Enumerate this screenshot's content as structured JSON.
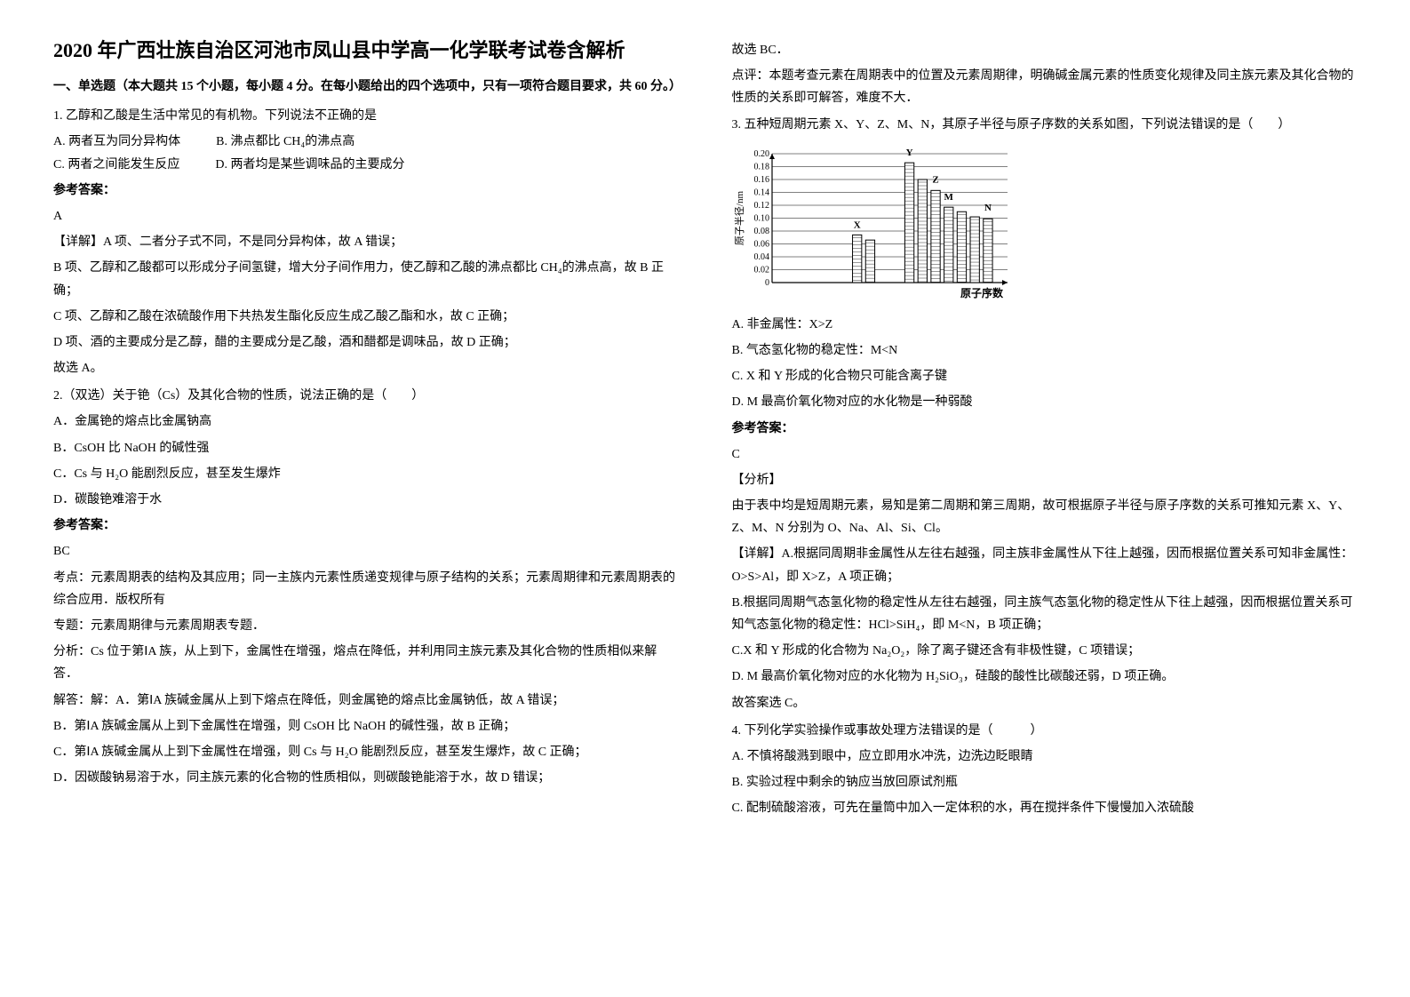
{
  "left": {
    "title": "2020 年广西壮族自治区河池市凤山县中学高一化学联考试卷含解析",
    "section1": "一、单选题（本大题共 15 个小题，每小题 4 分。在每小题给出的四个选项中，只有一项符合题目要求，共 60 分。）",
    "q1": {
      "stem": "1. 乙醇和乙酸是生活中常见的有机物。下列说法不正确的是",
      "A": "A. 两者互为同分异构体",
      "B": "B. 沸点都比 CH₄的沸点高",
      "C": "C. 两者之间能发生反应",
      "D": "D. 两者均是某些调味品的主要成分",
      "ans_label": "参考答案：",
      "ans": "A",
      "exp1": "【详解】A 项、二者分子式不同，不是同分异构体，故 A 错误；",
      "exp2": "B 项、乙醇和乙酸都可以形成分子间氢键，增大分子间作用力，使乙醇和乙酸的沸点都比 CH₄的沸点高，故 B 正确；",
      "exp3": "C 项、乙醇和乙酸在浓硫酸作用下共热发生酯化反应生成乙酸乙酯和水，故 C 正确；",
      "exp4": "D 项、酒的主要成分是乙醇，醋的主要成分是乙酸，酒和醋都是调味品，故 D 正确；",
      "exp5": "故选 A。"
    },
    "q2": {
      "stem": "2.（双选）关于铯（Cs）及其化合物的性质，说法正确的是（　　）",
      "A": "A．金属铯的熔点比金属钠高",
      "B": "B．CsOH 比 NaOH 的碱性强",
      "C": "C．Cs 与 H₂O 能剧烈反应，甚至发生爆炸",
      "D": "D．碳酸铯难溶于水",
      "ans_label": "参考答案：",
      "ans": "BC",
      "exp1": "考点：元素周期表的结构及其应用；同一主族内元素性质递变规律与原子结构的关系；元素周期律和元素周期表的综合应用．版权所有",
      "exp2": "专题：元素周期律与元素周期表专题．",
      "exp3": "分析：Cs 位于第ⅠA 族，从上到下，金属性在增强，熔点在降低，并利用同主族元素及其化合物的性质相似来解答．",
      "exp4": "解答：解：A．第ⅠA 族碱金属从上到下熔点在降低，则金属铯的熔点比金属钠低，故 A 错误；",
      "exp5": "B．第ⅠA 族碱金属从上到下金属性在增强，则 CsOH 比 NaOH 的碱性强，故 B 正确；",
      "exp6": "C．第ⅠA 族碱金属从上到下金属性在增强，则 Cs 与 H₂O 能剧烈反应，甚至发生爆炸，故 C 正确；",
      "exp7": "D．因碳酸钠易溶于水，同主族元素的化合物的性质相似，则碳酸铯能溶于水，故 D 错误；"
    }
  },
  "right": {
    "q2_tail1": "故选 BC．",
    "q2_tail2": "点评：本题考查元素在周期表中的位置及元素周期律，明确碱金属元素的性质变化规律及同主族元素及其化合物的性质的关系即可解答，难度不大．",
    "q3": {
      "stem": "3. 五种短周期元素 X、Y、Z、M、N，其原子半径与原子序数的关系如图，下列说法错误的是（　　）",
      "A": "A. 非金属性：X>Z",
      "B": "B. 气态氢化物的稳定性：M<N",
      "C": "C. X 和 Y 形成的化合物只可能含离子键",
      "D": "D. M 最高价氧化物对应的水化物是一种弱酸",
      "ans_label": "参考答案：",
      "ans": "C",
      "exp_h": "【分析】",
      "exp1": "由于表中均是短周期元素，易知是第二周期和第三周期，故可根据原子半径与原子序数的关系可推知元素 X、Y、Z、M、N 分别为 O、Na、Al、Si、Cl。",
      "exp2": "【详解】A.根据同周期非金属性从左往右越强，同主族非金属性从下往上越强，因而根据位置关系可知非金属性：O>S>Al，即 X>Z，A 项正确；",
      "exp3": "B.根据同周期气态氢化物的稳定性从左往右越强，同主族气态氢化物的稳定性从下往上越强，因而根据位置关系可知气态氢化物的稳定性：HCl>SiH₄，即 M<N，B 项正确；",
      "exp4": "C.X 和 Y 形成的化合物为 Na₂O₂，除了离子键还含有非极性键，C 项错误；",
      "exp5": "D. M 最高价氧化物对应的水化物为 H₂SiO₃，硅酸的酸性比碳酸还弱，D 项正确。",
      "exp6": "故答案选 C。"
    },
    "q4": {
      "stem": "4. 下列化学实验操作或事故处理方法错误的是（　　　）",
      "A": "A. 不慎将酸溅到眼中，应立即用水冲洗，边洗边眨眼睛",
      "B": "B. 实验过程中剩余的钠应当放回原试剂瓶",
      "C": "C. 配制硫酸溶液，可先在量筒中加入一定体积的水，再在搅拌条件下慢慢加入浓硫酸"
    },
    "chart": {
      "type": "bar",
      "ylabel": "原子半径/nm",
      "xlabel": "原子序数",
      "ylim": [
        0,
        0.2
      ],
      "ytick_step": 0.02,
      "yticks": [
        "0",
        "0.02",
        "0.04",
        "0.06",
        "0.08",
        "0.10",
        "0.12",
        "0.14",
        "0.16",
        "0.18",
        "0.20"
      ],
      "xcount": 18,
      "bars": [
        0,
        0,
        0,
        0,
        0,
        0,
        0.074,
        0.066,
        0,
        0,
        0.186,
        0.16,
        0.143,
        0.117,
        0.11,
        0.102,
        0.099,
        0
      ],
      "markers": [
        {
          "label": "X",
          "x": 7,
          "y": 0.085
        },
        {
          "label": "Y",
          "x": 11,
          "y": 0.197
        },
        {
          "label": "Z",
          "x": 13,
          "y": 0.155
        },
        {
          "label": "M",
          "x": 14,
          "y": 0.128
        },
        {
          "label": "N",
          "x": 17,
          "y": 0.112
        }
      ],
      "bar_color": "#000000",
      "fill_color": "#ffffff",
      "grid_color": "#000000",
      "background_color": "#ffffff",
      "font_size": 10
    }
  }
}
